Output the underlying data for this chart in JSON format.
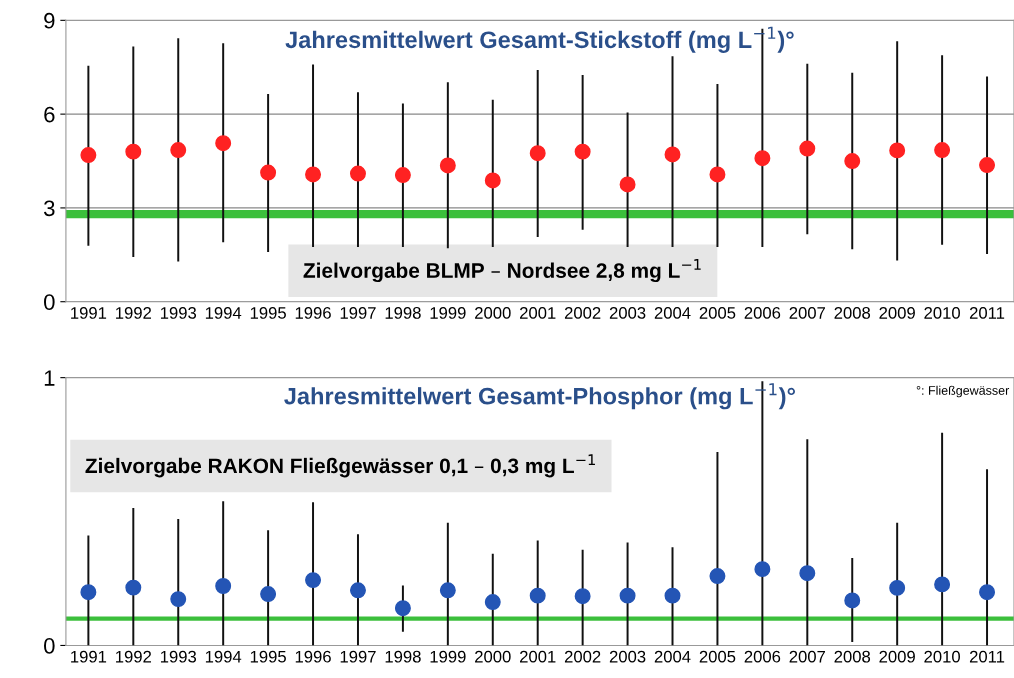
{
  "chart_data": [
    {
      "type": "scatter",
      "title": "Jahresmittelwert Gesamt-Stickstoff (mg L$^{−1}$)°",
      "categories": [
        "1991",
        "1992",
        "1993",
        "1994",
        "1995",
        "1996",
        "1997",
        "1998",
        "1999",
        "2000",
        "2001",
        "2002",
        "2003",
        "2004",
        "2005",
        "2006",
        "2007",
        "2008",
        "2009",
        "2010",
        "2011"
      ],
      "series": [
        {
          "color": "#ff2222",
          "values": [
            4.69,
            4.8,
            4.85,
            5.07,
            4.13,
            4.07,
            4.1,
            4.05,
            4.36,
            3.88,
            4.75,
            4.8,
            3.75,
            4.71,
            4.07,
            4.59,
            4.9,
            4.5,
            4.84,
            4.85,
            4.37
          ],
          "errors": [
            [
              1.79,
              7.55
            ],
            [
              1.43,
              8.16
            ],
            [
              1.29,
              8.43
            ],
            [
              1.9,
              8.27
            ],
            [
              1.59,
              6.64
            ],
            [
              1.75,
              7.59
            ],
            [
              1.75,
              6.7
            ],
            [
              1.75,
              6.34
            ],
            [
              1.71,
              7.02
            ],
            [
              1.75,
              6.46
            ],
            [
              2.07,
              7.41
            ],
            [
              2.3,
              7.25
            ],
            [
              1.75,
              6.05
            ],
            [
              1.75,
              7.85
            ],
            [
              1.75,
              6.96
            ],
            [
              1.75,
              8.73
            ],
            [
              2.16,
              7.61
            ],
            [
              1.68,
              7.32
            ],
            [
              1.32,
              8.33
            ],
            [
              1.82,
              7.88
            ],
            [
              1.53,
              7.2
            ]
          ]
        }
      ],
      "ylim": [
        0,
        9
      ],
      "yticks": [
        0,
        3,
        6,
        9
      ],
      "grid": "y",
      "marker": "circle",
      "legend": false,
      "ref_lines": [
        {
          "axis": "y",
          "value": 2.8,
          "label": "Zielvorgabe BLMP – Nordsee 2,8 mg L$^{−1}$",
          "color": "#3cbf3c"
        }
      ]
    },
    {
      "type": "scatter",
      "title": "Jahresmittelwert Gesamt-Phosphor (mg L$^{−1}$)°",
      "categories": [
        "1991",
        "1992",
        "1993",
        "1994",
        "1995",
        "1996",
        "1997",
        "1998",
        "1999",
        "2000",
        "2001",
        "2002",
        "2003",
        "2004",
        "2005",
        "2006",
        "2007",
        "2008",
        "2009",
        "2010",
        "2011"
      ],
      "series": [
        {
          "color": "#2455b5",
          "values": [
            0.199,
            0.216,
            0.173,
            0.222,
            0.192,
            0.244,
            0.206,
            0.139,
            0.206,
            0.162,
            0.186,
            0.184,
            0.186,
            0.186,
            0.259,
            0.285,
            0.27,
            0.168,
            0.215,
            0.228,
            0.199
          ],
          "errors": [
            [
              0,
              0.411
            ],
            [
              0,
              0.513
            ],
            [
              0,
              0.472
            ],
            [
              0,
              0.538
            ],
            [
              0,
              0.43
            ],
            [
              0,
              0.535
            ],
            [
              0,
              0.415
            ],
            [
              0.051,
              0.224
            ],
            [
              0,
              0.458
            ],
            [
              0,
              0.342
            ],
            [
              0,
              0.392
            ],
            [
              0,
              0.357
            ],
            [
              0,
              0.384
            ],
            [
              0,
              0.367
            ],
            [
              0,
              0.722
            ],
            [
              0,
              0.987
            ],
            [
              0,
              0.77
            ],
            [
              0.013,
              0.327
            ],
            [
              0,
              0.458
            ],
            [
              0,
              0.794
            ],
            [
              0,
              0.658
            ]
          ]
        }
      ],
      "ylim": [
        0,
        1
      ],
      "yticks": [
        0,
        1
      ],
      "grid": false,
      "marker": "circle",
      "legend": false,
      "ref_lines": [
        {
          "axis": "y",
          "value": 0.1,
          "color": "#3cbf3c"
        }
      ],
      "annotations": [
        "Zielvorgabe RAKON Fließgewässer 0,1 – 0,3 mg L$^{−1}$",
        "°: Fließgewässer"
      ]
    }
  ]
}
